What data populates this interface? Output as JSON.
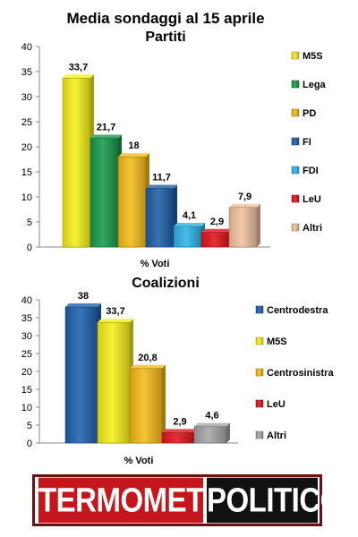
{
  "page": {
    "title": "Media sondaggi al 15 aprile"
  },
  "chart_data": [
    {
      "type": "bar",
      "title": "Partiti",
      "xlabel": "% Voti",
      "ylabel": "",
      "ylim": [
        0,
        40
      ],
      "yticks": [
        0,
        5,
        10,
        15,
        20,
        25,
        30,
        35,
        40
      ],
      "legend_position": "right",
      "categories": [
        "M5S",
        "Lega",
        "PD",
        "FI",
        "FDI",
        "LeU",
        "Altri"
      ],
      "values": [
        33.7,
        21.7,
        18,
        11.7,
        4.1,
        2.9,
        7.9
      ],
      "value_labels": [
        "33,7",
        "21,7",
        "18",
        "11,7",
        "4,1",
        "2,9",
        "7,9"
      ],
      "colors": [
        "#f5ef1a",
        "#1a9a4b",
        "#f5bb18",
        "#1e5fa8",
        "#2fb3e6",
        "#e3141c",
        "#f1c2a0"
      ],
      "grid": false
    },
    {
      "type": "bar",
      "title": "Coalizioni",
      "xlabel": "% Voti",
      "ylabel": "",
      "ylim": [
        0,
        40
      ],
      "yticks": [
        0,
        5,
        10,
        15,
        20,
        25,
        30,
        35,
        40
      ],
      "legend_position": "right",
      "categories": [
        "Centrodestra",
        "M5S",
        "Centrosinistra",
        "LeU",
        "Altri"
      ],
      "values": [
        38,
        33.7,
        20.8,
        2.9,
        4.6
      ],
      "value_labels": [
        "38",
        "33,7",
        "20,8",
        "2,9",
        "4,6"
      ],
      "colors": [
        "#1f62b0",
        "#f5ef1a",
        "#f5bb18",
        "#e3141c",
        "#a6a6a6"
      ],
      "grid": false
    }
  ],
  "logo": {
    "part1": "TERMOMETRO",
    "part2": "POLITICO",
    "colors": {
      "red": "#c4161c",
      "black": "#111111"
    }
  }
}
